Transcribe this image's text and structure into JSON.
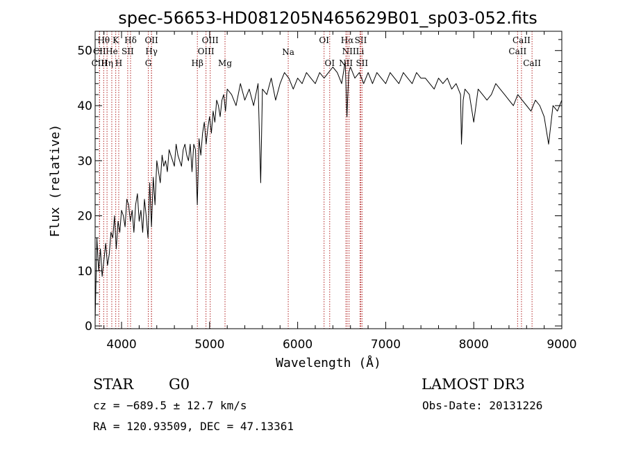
{
  "chart_data": {
    "type": "line",
    "title": "spec-56653-HD081205N465629B01_sp03-052.fits",
    "xlabel": "Wavelength (Å)",
    "ylabel": "Flux (relative)",
    "xlim": [
      3700,
      9000
    ],
    "ylim": [
      -0.5,
      53.5
    ],
    "x_ticks": [
      4000,
      5000,
      6000,
      7000,
      8000,
      9000
    ],
    "y_ticks": [
      0,
      10,
      20,
      30,
      40,
      50
    ],
    "grid": false,
    "series": [
      {
        "color": "#000000",
        "x": [
          3700,
          3720,
          3740,
          3760,
          3780,
          3800,
          3820,
          3840,
          3860,
          3880,
          3900,
          3920,
          3940,
          3960,
          3980,
          4000,
          4020,
          4040,
          4060,
          4080,
          4100,
          4120,
          4140,
          4160,
          4180,
          4200,
          4220,
          4240,
          4260,
          4280,
          4300,
          4320,
          4340,
          4360,
          4380,
          4400,
          4420,
          4440,
          4460,
          4480,
          4500,
          4520,
          4540,
          4560,
          4580,
          4600,
          4620,
          4640,
          4660,
          4680,
          4700,
          4720,
          4740,
          4760,
          4780,
          4800,
          4820,
          4840,
          4860,
          4880,
          4900,
          4920,
          4940,
          4960,
          4980,
          5000,
          5020,
          5040,
          5060,
          5080,
          5100,
          5120,
          5140,
          5160,
          5180,
          5200,
          5250,
          5300,
          5350,
          5400,
          5450,
          5500,
          5550,
          5580,
          5600,
          5650,
          5700,
          5750,
          5800,
          5850,
          5900,
          5950,
          6000,
          6050,
          6100,
          6150,
          6200,
          6250,
          6300,
          6350,
          6400,
          6450,
          6500,
          6540,
          6560,
          6580,
          6600,
          6650,
          6700,
          6750,
          6800,
          6850,
          6900,
          6950,
          7000,
          7050,
          7100,
          7150,
          7200,
          7250,
          7300,
          7350,
          7400,
          7450,
          7500,
          7550,
          7600,
          7650,
          7700,
          7750,
          7800,
          7850,
          7860,
          7880,
          7900,
          7950,
          8000,
          8050,
          8100,
          8150,
          8200,
          8250,
          8300,
          8350,
          8400,
          8450,
          8500,
          8550,
          8600,
          8650,
          8700,
          8750,
          8800,
          8850,
          8900,
          8950,
          9000
        ],
        "y": [
          1,
          16,
          10,
          14,
          9,
          12,
          15,
          11,
          13,
          17,
          16,
          20,
          14,
          19,
          17,
          21,
          20,
          18,
          23,
          22,
          19,
          21,
          17,
          22,
          24,
          19,
          21,
          17,
          23,
          20,
          16,
          26,
          18,
          27,
          22,
          30,
          28,
          26,
          31,
          29,
          30,
          28,
          32,
          31,
          30,
          29,
          33,
          31,
          30,
          29,
          32,
          33,
          31,
          30,
          33,
          28,
          33,
          32,
          22,
          34,
          31,
          35,
          37,
          33,
          36,
          38,
          35,
          39,
          37,
          41,
          40,
          38,
          41,
          42,
          39,
          43,
          42,
          40,
          44,
          41,
          43,
          40,
          44,
          26,
          43,
          42,
          45,
          41,
          44,
          46,
          45,
          43,
          45,
          44,
          46,
          45,
          44,
          46,
          45,
          46,
          47,
          46,
          44,
          48,
          38,
          46,
          47,
          45,
          46,
          44,
          46,
          44,
          46,
          45,
          44,
          46,
          45,
          44,
          46,
          45,
          44,
          46,
          45,
          45,
          44,
          43,
          45,
          44,
          45,
          43,
          44,
          42,
          33,
          41,
          43,
          42,
          37,
          43,
          42,
          41,
          42,
          44,
          43,
          42,
          41,
          40,
          42,
          41,
          40,
          39,
          41,
          40,
          38,
          33,
          40,
          39,
          41
        ]
      }
    ],
    "line_markers": [
      {
        "label": "Hθ",
        "x": 3797,
        "row": 0
      },
      {
        "label": "K",
        "x": 3934,
        "row": 0
      },
      {
        "label": "Hδ",
        "x": 4102,
        "row": 0
      },
      {
        "label": "OII",
        "x": 4340,
        "row": 0
      },
      {
        "label": "OIII",
        "x": 5007,
        "row": 0
      },
      {
        "label": "OI",
        "x": 6300,
        "row": 0
      },
      {
        "label": "Hα",
        "x": 6563,
        "row": 0
      },
      {
        "label": "SII",
        "x": 6717,
        "row": 0
      },
      {
        "label": "CaII",
        "x": 8542,
        "row": 0
      },
      {
        "label": "CII",
        "x": 3750,
        "row": 1
      },
      {
        "label": "He",
        "x": 3889,
        "row": 1
      },
      {
        "label": "SII",
        "x": 4070,
        "row": 1
      },
      {
        "label": "Hγ",
        "x": 4340,
        "row": 1
      },
      {
        "label": "OIII",
        "x": 4959,
        "row": 1
      },
      {
        "label": "NII",
        "x": 6584,
        "row": 1
      },
      {
        "label": "Li",
        "x": 6708,
        "row": 1
      },
      {
        "label": "CaII",
        "x": 8498,
        "row": 1
      },
      {
        "label": "CIII",
        "x": 3750,
        "row": 2
      },
      {
        "label": "Hη",
        "x": 3835,
        "row": 2
      },
      {
        "label": "H",
        "x": 3968,
        "row": 2
      },
      {
        "label": "G",
        "x": 4304,
        "row": 2
      },
      {
        "label": "Hβ",
        "x": 4861,
        "row": 2
      },
      {
        "label": "Mg",
        "x": 5175,
        "row": 2
      },
      {
        "label": "Na",
        "x": 5893,
        "row": 0.6
      },
      {
        "label": "OI",
        "x": 6364,
        "row": 2
      },
      {
        "label": "NII",
        "x": 6548,
        "row": 2
      },
      {
        "label": "SII",
        "x": 6731,
        "row": 2
      },
      {
        "label": "CaII",
        "x": 8662,
        "row": 2
      }
    ],
    "marker_color": "#b22222"
  },
  "info": {
    "class_label": "STAR",
    "subclass_label": "G0",
    "survey_label": "LAMOST DR3",
    "cz_text": "cz = −689.5 ± 12.7 km/s",
    "obs_date_text": "Obs-Date: 20131226",
    "radec_text": "RA = 120.93509, DEC =  47.13361"
  }
}
